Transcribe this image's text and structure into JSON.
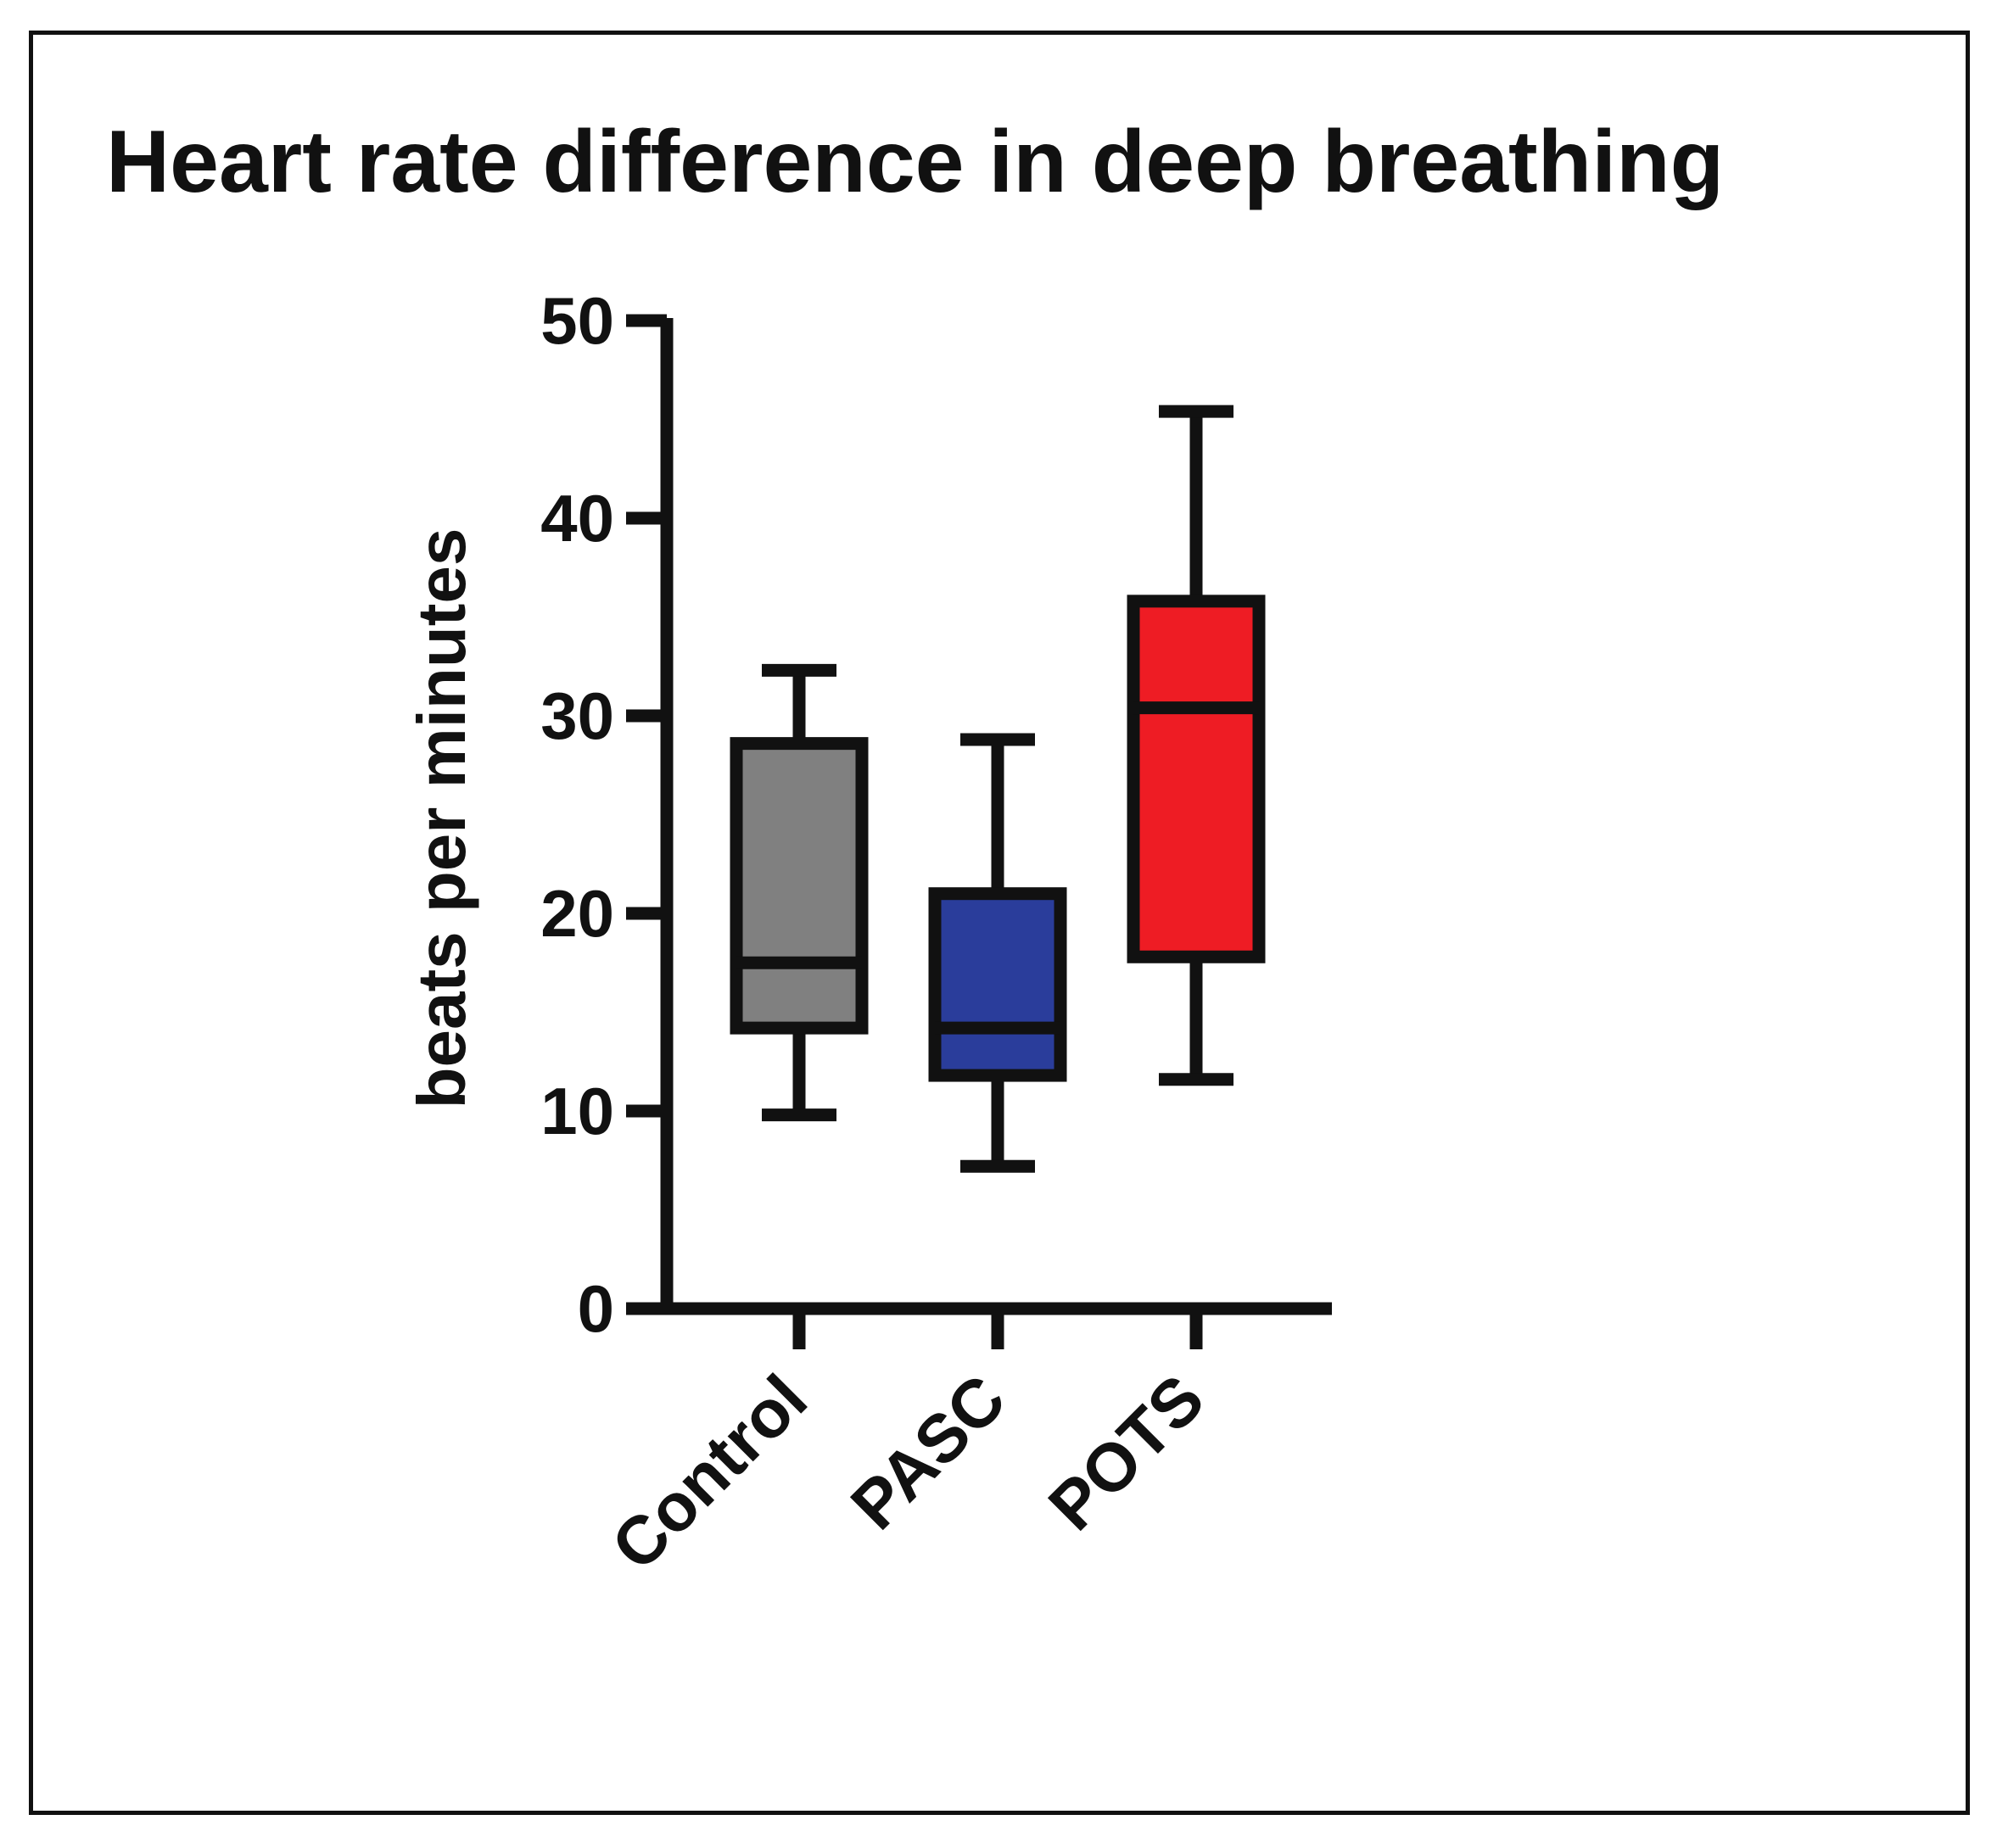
{
  "chart_data": {
    "type": "box",
    "title": "Heart rate difference in deep breathing",
    "xlabel": "",
    "ylabel": "beats per minutes",
    "ylim": [
      0,
      50
    ],
    "yticks": [
      0,
      10,
      20,
      30,
      40,
      50
    ],
    "categories": [
      "Control",
      "PASC",
      "POTS"
    ],
    "boxes": [
      {
        "name": "Control",
        "color": "#808080",
        "min": 9.8,
        "q1": 14.2,
        "median": 17.5,
        "q3": 28.6,
        "max": 32.3
      },
      {
        "name": "PASC",
        "color": "#2a3d9b",
        "min": 7.2,
        "q1": 11.8,
        "median": 14.2,
        "q3": 21.0,
        "max": 28.8
      },
      {
        "name": "POTS",
        "color": "#ee1c24",
        "min": 11.6,
        "q1": 17.8,
        "median": 30.4,
        "q3": 35.8,
        "max": 45.4
      }
    ],
    "grid": false,
    "legend": "none"
  }
}
